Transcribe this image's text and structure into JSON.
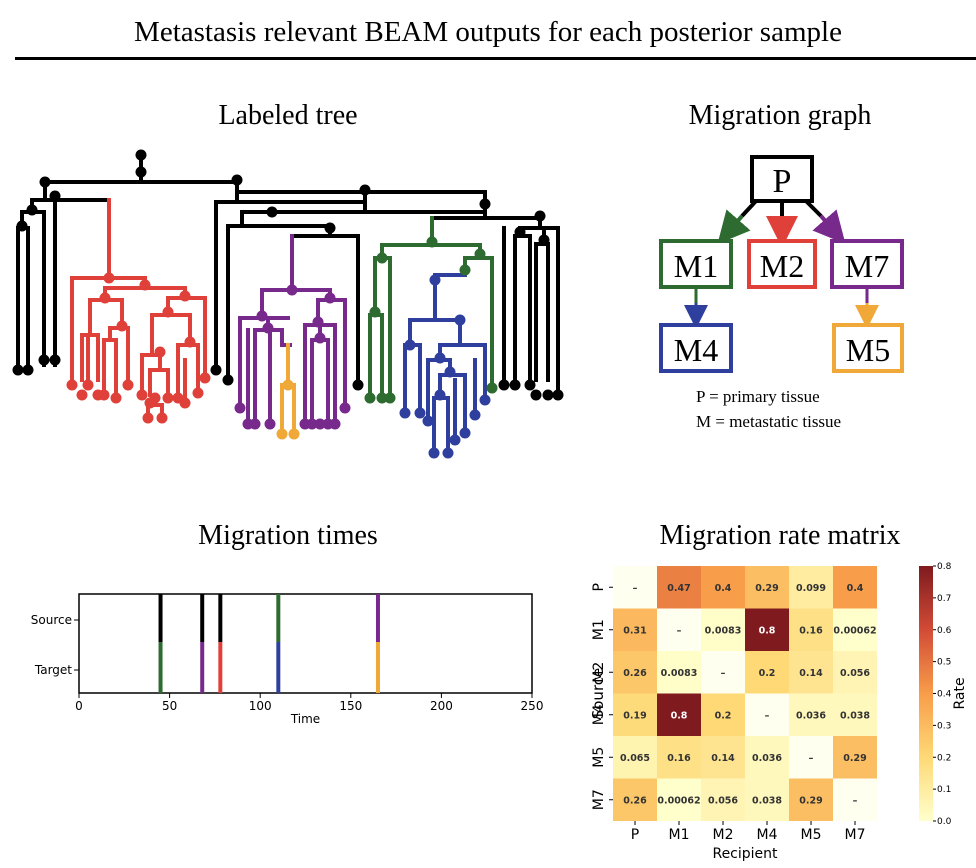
{
  "header": {
    "title": "Metastasis relevant BEAM outputs for each posterior sample"
  },
  "panels": {
    "tree_title": "Labeled tree",
    "graph_title": "Migration graph",
    "times_title": "Migration times",
    "matrix_title": "Migration rate matrix"
  },
  "colors": {
    "P": "#000000",
    "M1": "#2e6b30",
    "M2": "#e0403a",
    "M4": "#2f3f9e",
    "M5": "#f0a838",
    "M7": "#772a8c"
  },
  "migration_graph": {
    "nodes": [
      "P",
      "M1",
      "M2",
      "M7",
      "M4",
      "M5"
    ],
    "edges": [
      [
        "P",
        "M1"
      ],
      [
        "P",
        "M2"
      ],
      [
        "P",
        "M7"
      ],
      [
        "M1",
        "M4"
      ],
      [
        "M7",
        "M5"
      ]
    ],
    "legend": [
      "P = primary tissue",
      "M = metastatic tissue"
    ]
  },
  "chart_data": [
    {
      "type": "bar",
      "title": "Migration times",
      "xlabel": "Time",
      "ylabel": "",
      "xlim": [
        0,
        250
      ],
      "xticks": [
        "0",
        "50",
        "100",
        "150",
        "200",
        "250"
      ],
      "yticks": [
        "Source",
        "Target"
      ],
      "events": [
        {
          "time": 45,
          "source": "P",
          "target": "M1"
        },
        {
          "time": 68,
          "source": "P",
          "target": "M7"
        },
        {
          "time": 78,
          "source": "P",
          "target": "M2"
        },
        {
          "time": 110,
          "source": "M1",
          "target": "M4"
        },
        {
          "time": 165,
          "source": "M7",
          "target": "M5"
        }
      ]
    },
    {
      "type": "heatmap",
      "title": "Migration rate matrix",
      "xlabel": "Recipient",
      "ylabel": "Source",
      "rows": [
        "P",
        "M1",
        "M2",
        "M4",
        "M5",
        "M7"
      ],
      "cols": [
        "P",
        "M1",
        "M2",
        "M4",
        "M5",
        "M7"
      ],
      "values": [
        [
          null,
          0.47,
          0.4,
          0.29,
          0.099,
          0.4
        ],
        [
          0.31,
          null,
          0.0083,
          0.8,
          0.16,
          0.00062
        ],
        [
          0.26,
          0.0083,
          null,
          0.2,
          0.14,
          0.056
        ],
        [
          0.19,
          0.8,
          0.2,
          null,
          0.036,
          0.038
        ],
        [
          0.065,
          0.16,
          0.14,
          0.036,
          null,
          0.29
        ],
        [
          0.26,
          0.00062,
          0.056,
          0.038,
          0.29,
          null
        ]
      ],
      "labels": [
        [
          "–",
          "0.47",
          "0.4",
          "0.29",
          "0.099",
          "0.4"
        ],
        [
          "0.31",
          "–",
          "0.0083",
          "0.8",
          "0.16",
          "0.00062"
        ],
        [
          "0.26",
          "0.0083",
          "–",
          "0.2",
          "0.14",
          "0.056"
        ],
        [
          "0.19",
          "0.8",
          "0.2",
          "–",
          "0.036",
          "0.038"
        ],
        [
          "0.065",
          "0.16",
          "0.14",
          "0.036",
          "–",
          "0.29"
        ],
        [
          "0.26",
          "0.00062",
          "0.056",
          "0.038",
          "0.29",
          "–"
        ]
      ],
      "colorbar_label": "Rate",
      "colorbar_range": [
        0,
        0.8
      ],
      "colorbar_ticks": [
        "0.0",
        "0.1",
        "0.2",
        "0.3",
        "0.4",
        "0.5",
        "0.6",
        "0.7",
        "0.8"
      ]
    }
  ]
}
